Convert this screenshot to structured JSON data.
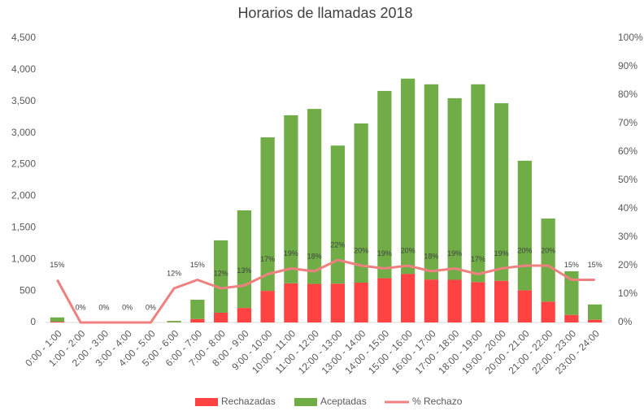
{
  "chart_data": {
    "type": "bar",
    "stacked": true,
    "title": "Horarios de llamadas 2018",
    "categories": [
      "0:00 - 1:00",
      "1:00 - 2:00",
      "2:00 - 3:00",
      "3:00 - 4:00",
      "4:00 - 5:00",
      "5:00 - 6:00",
      "6:00 - 7:00",
      "7:00 - 8:00",
      "8:00 - 9:00",
      "9:00 - 10:00",
      "10:00 - 11:00",
      "11:00 - 12:00",
      "12:00 - 13:00",
      "13:00 - 14:00",
      "14:00 - 15:00",
      "15:00 - 16:00",
      "16:00 - 17:00",
      "17:00 - 18:00",
      "18:00 - 19:00",
      "19:00 - 20:00",
      "20:00 - 21:00",
      "21:00 - 22:00",
      "22:00 - 23:00",
      "23:00 - 24:00"
    ],
    "series": [
      {
        "name": "Rechazadas",
        "type": "bar",
        "color": "#ff4343",
        "values": [
          12,
          0,
          0,
          0,
          0,
          3,
          55,
          155,
          230,
          500,
          620,
          610,
          615,
          630,
          700,
          770,
          680,
          675,
          640,
          660,
          510,
          330,
          120,
          43
        ]
      },
      {
        "name": "Aceptadas",
        "type": "bar",
        "color": "#70ad47",
        "values": [
          68,
          0,
          0,
          0,
          0,
          22,
          305,
          1145,
          1545,
          2430,
          2660,
          2770,
          2185,
          2520,
          2965,
          3090,
          3090,
          2875,
          3130,
          2810,
          2050,
          1315,
          690,
          242
        ]
      },
      {
        "name": "% Rechazo",
        "type": "line",
        "axis": "y2",
        "color": "#f08080",
        "values": [
          15,
          0,
          0,
          0,
          0,
          12,
          15,
          12,
          13,
          17,
          19,
          18,
          22,
          20,
          19,
          20,
          18,
          19,
          17,
          19,
          20,
          20,
          15,
          15
        ],
        "value_labels": [
          "15%",
          "0%",
          "0%",
          "0%",
          "0%",
          "12%",
          "15%",
          "12%",
          "13%",
          "17%",
          "19%",
          "18%",
          "22%",
          "20%",
          "19%",
          "20%",
          "18%",
          "19%",
          "17%",
          "19%",
          "20%",
          "20%",
          "15%",
          "15%"
        ]
      }
    ],
    "ylim": [
      0,
      4500
    ],
    "yticks": [
      0,
      500,
      {
        "value": 1000,
        "label": "1,000"
      },
      {
        "value": 1500,
        "label": "1,500"
      },
      {
        "value": 2000,
        "label": "2,000"
      },
      {
        "value": 2500,
        "label": "2,500"
      },
      {
        "value": 3000,
        "label": "3,000"
      },
      {
        "value": 3500,
        "label": "3,500"
      },
      {
        "value": 4000,
        "label": "4,000"
      },
      {
        "value": 4500,
        "label": "4,500"
      }
    ],
    "y2lim": [
      0,
      100
    ],
    "y2ticks": [
      {
        "value": 0,
        "label": "0%"
      },
      {
        "value": 10,
        "label": "10%"
      },
      {
        "value": 20,
        "label": "20%"
      },
      {
        "value": 30,
        "label": "30%"
      },
      {
        "value": 40,
        "label": "40%"
      },
      {
        "value": 50,
        "label": "50%"
      },
      {
        "value": 60,
        "label": "60%"
      },
      {
        "value": 70,
        "label": "70%"
      },
      {
        "value": 80,
        "label": "80%"
      },
      {
        "value": 90,
        "label": "90%"
      },
      {
        "value": 100,
        "label": "100%"
      }
    ],
    "grid": false,
    "legend": "bottom"
  }
}
